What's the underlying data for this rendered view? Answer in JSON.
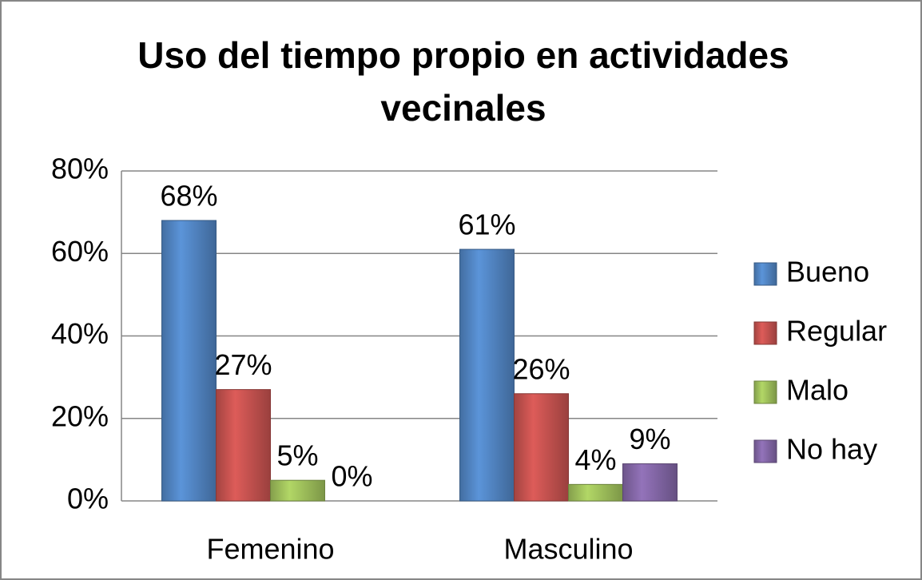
{
  "chart_data": {
    "type": "bar",
    "title": "Uso del tiempo propio en actividades vecinales",
    "categories": [
      "Femenino",
      "Masculino"
    ],
    "series": [
      {
        "name": "Bueno",
        "color": "#4f81bd",
        "values": [
          68,
          61
        ],
        "value_labels": [
          "68%",
          "61%"
        ]
      },
      {
        "name": "Regular",
        "color": "#c0504d",
        "values": [
          27,
          26
        ],
        "value_labels": [
          "27%",
          "26%"
        ]
      },
      {
        "name": "Malo",
        "color": "#9bbb59",
        "values": [
          5,
          4
        ],
        "value_labels": [
          "5%",
          "4%"
        ]
      },
      {
        "name": "No hay",
        "color": "#8064a2",
        "values": [
          0,
          9
        ],
        "value_labels": [
          "0%",
          "9%"
        ]
      }
    ],
    "ylim": [
      0,
      80
    ],
    "yticks": [
      {
        "value": 0,
        "label": "0%"
      },
      {
        "value": 20,
        "label": "20%"
      },
      {
        "value": 40,
        "label": "40%"
      },
      {
        "value": 60,
        "label": "60%"
      },
      {
        "value": 80,
        "label": "80%"
      }
    ],
    "grid": true,
    "legend": "right"
  }
}
